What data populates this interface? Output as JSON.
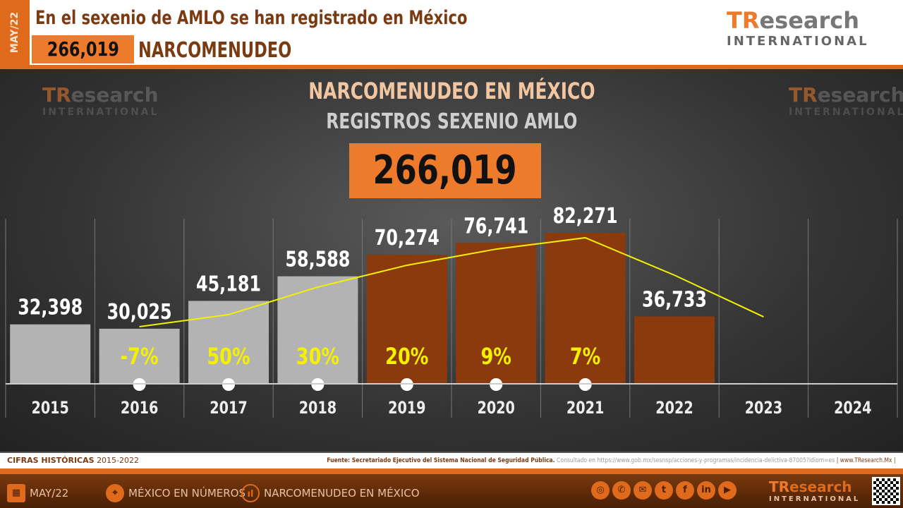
{
  "header": {
    "date_tag": "MAY/22",
    "headline": "En el sexenio de AMLO se han registrado en México",
    "total": "266,019",
    "crime": "NARCOMENUDEO"
  },
  "logo": {
    "tr": "TR",
    "rest": "esearch",
    "sub": "INTERNATIONAL"
  },
  "chart_data": {
    "type": "bar",
    "title": "NARCOMENUDEO EN MÉXICO",
    "subtitle": "REGISTROS SEXENIO AMLO",
    "total_label": "266,019",
    "categories": [
      "2015",
      "2016",
      "2017",
      "2018",
      "2019",
      "2020",
      "2021",
      "2022",
      "2023",
      "2024"
    ],
    "values": [
      32398,
      30025,
      45181,
      58588,
      70274,
      76741,
      82271,
      36733,
      null,
      null
    ],
    "value_labels": [
      "32,398",
      "30,025",
      "45,181",
      "58,588",
      "70,274",
      "76,741",
      "82,271",
      "36,733",
      "",
      ""
    ],
    "growth_labels": [
      "",
      "-7%",
      "50%",
      "30%",
      "20%",
      "9%",
      "7%",
      "",
      "",
      ""
    ],
    "trend_line": {
      "x": [
        "2016",
        "2017",
        "2018",
        "2019",
        "2020",
        "2021",
        "2022",
        "2023"
      ],
      "values": [
        31150,
        37700,
        52700,
        64600,
        73400,
        79600,
        59200,
        36500
      ]
    },
    "bar_colors": {
      "pre_amlo": "#b3b3b3",
      "amlo": "#8a3a0c"
    },
    "amlo_start_index": 4,
    "ylim": [
      0,
      90000
    ]
  },
  "footer": {
    "historic_label": "CIFRAS HISTÓRICAS",
    "historic_range": "2015-2022",
    "source": "Fuente: Secretariado Ejecutivo del Sistema Nacional de Seguridad Pública.",
    "consulted": "Consultado en https://www.gob.mx/sesnsp/acciones-y-programas/incidencia-delictiva-87005?idiom=es",
    "site": "| www.TResearch.Mx |",
    "nav": [
      "MAY/22",
      "MÉXICO EN NÚMEROS",
      "NARCOMENUDEO EN MÉXICO"
    ],
    "social": [
      "web",
      "phone",
      "mail",
      "twitter",
      "facebook",
      "linkedin",
      "youtube"
    ]
  }
}
